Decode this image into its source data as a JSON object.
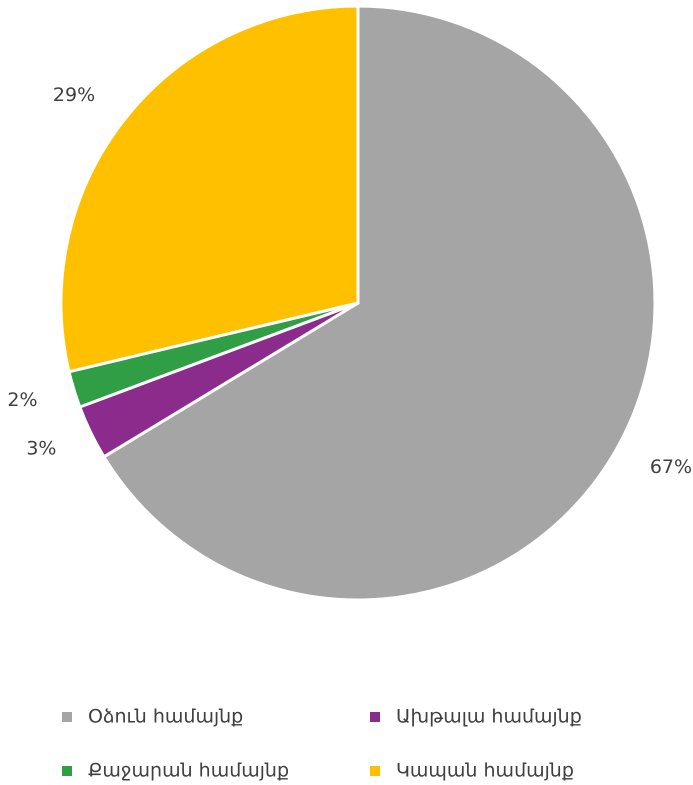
{
  "chart_data": {
    "type": "pie",
    "categories": [
      "Օձուն համայնք",
      "Ախթալա համայնք",
      "Քաջարան համայնք",
      "Կապան համայնք"
    ],
    "values": [
      67,
      3,
      2,
      29
    ],
    "value_labels": [
      "67%",
      "3%",
      "2%",
      "29%"
    ],
    "colors": [
      "#a5a5a5",
      "#8b2b8c",
      "#2f9e45",
      "#ffc000"
    ],
    "legend": "bottom"
  }
}
